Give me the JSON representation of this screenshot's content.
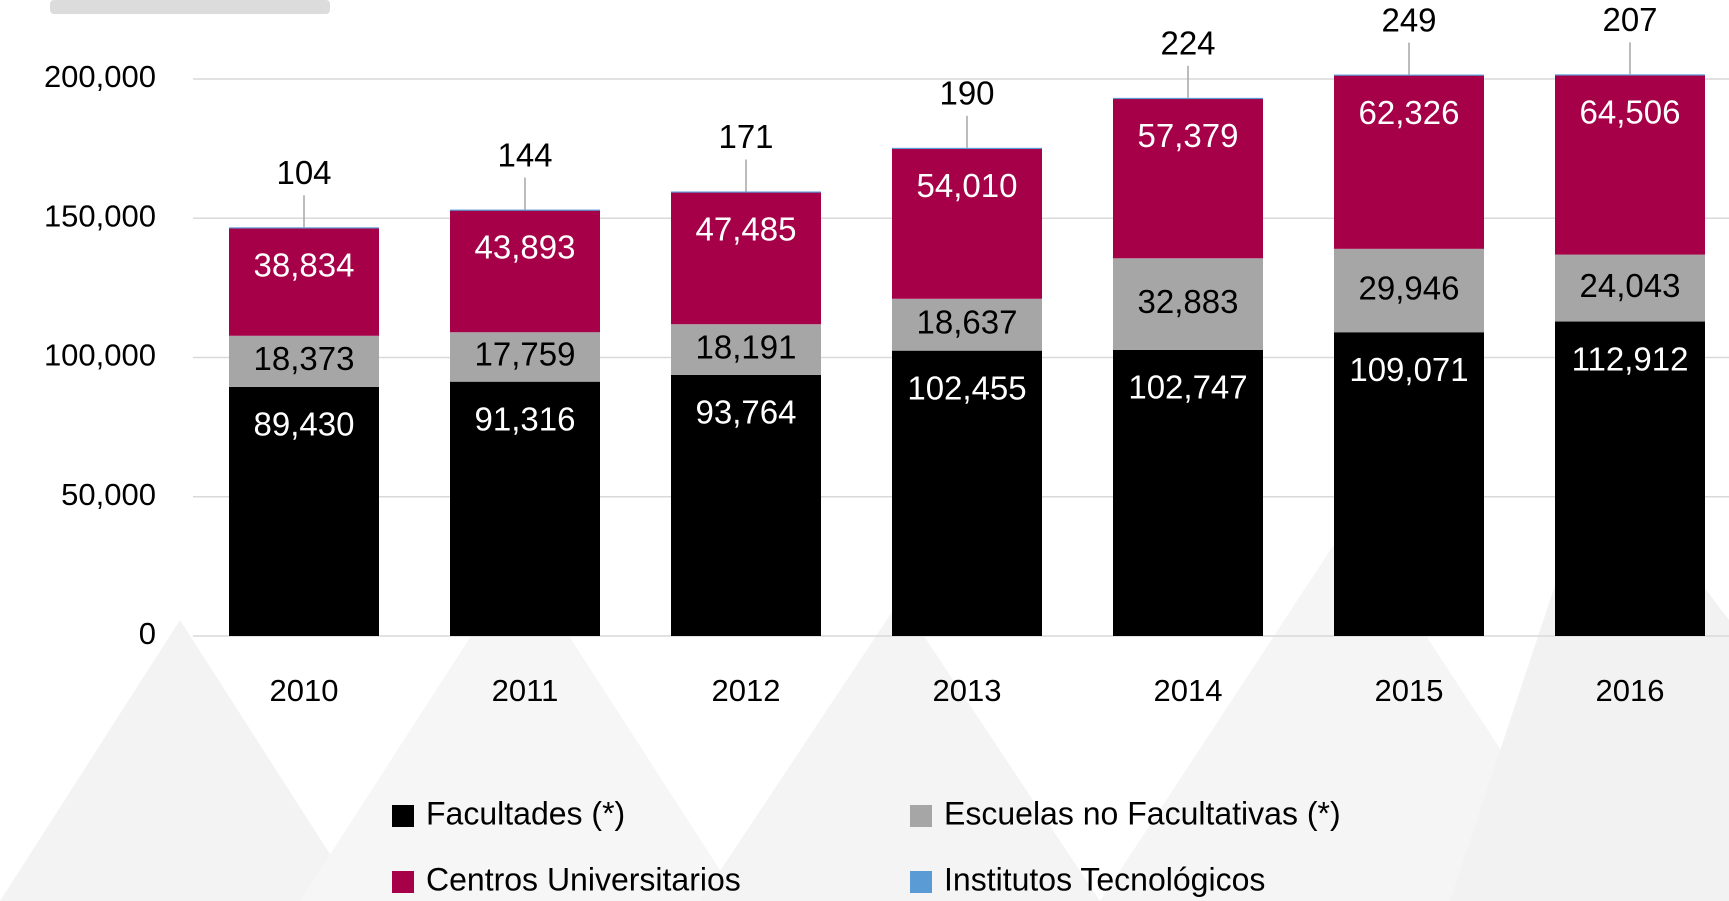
{
  "chart_data": {
    "type": "stacked_bar",
    "categories": [
      "2010",
      "2011",
      "2012",
      "2013",
      "2014",
      "2015",
      "2016"
    ],
    "series": [
      {
        "name": "Facultades (*)",
        "color": "#000000",
        "values": [
          89430,
          91316,
          93764,
          102455,
          102747,
          109071,
          112912
        ],
        "value_labels": [
          "89,430",
          "91,316",
          "93,764",
          "102,455",
          "102,747",
          "109,071",
          "112,912"
        ]
      },
      {
        "name": "Escuelas no Facultativas (*)",
        "color": "#a6a6a6",
        "values": [
          18373,
          17759,
          18191,
          18637,
          32883,
          29946,
          24043
        ],
        "value_labels": [
          "18,373",
          "17,759",
          "18,191",
          "18,637",
          "32,883",
          "29,946",
          "24,043"
        ]
      },
      {
        "name": "Centros Universitarios",
        "color": "#a50048",
        "values": [
          38834,
          43893,
          47485,
          54010,
          57379,
          62326,
          64506
        ],
        "value_labels": [
          "38,834",
          "43,893",
          "47,485",
          "54,010",
          "57,379",
          "62,326",
          "64,506"
        ]
      },
      {
        "name": "Institutos Tecnológicos",
        "color": "#5b9bd5",
        "values": [
          104,
          144,
          171,
          190,
          224,
          249,
          207
        ]
      }
    ],
    "ylim": [
      0,
      200000
    ],
    "yticks": [
      0,
      {
        "value": 50000,
        "label": "50,000"
      },
      {
        "value": 100000,
        "label": "100,000"
      },
      {
        "value": 150000,
        "label": "150,000"
      },
      {
        "value": 200000,
        "label": "200,000"
      }
    ],
    "grid": true
  }
}
